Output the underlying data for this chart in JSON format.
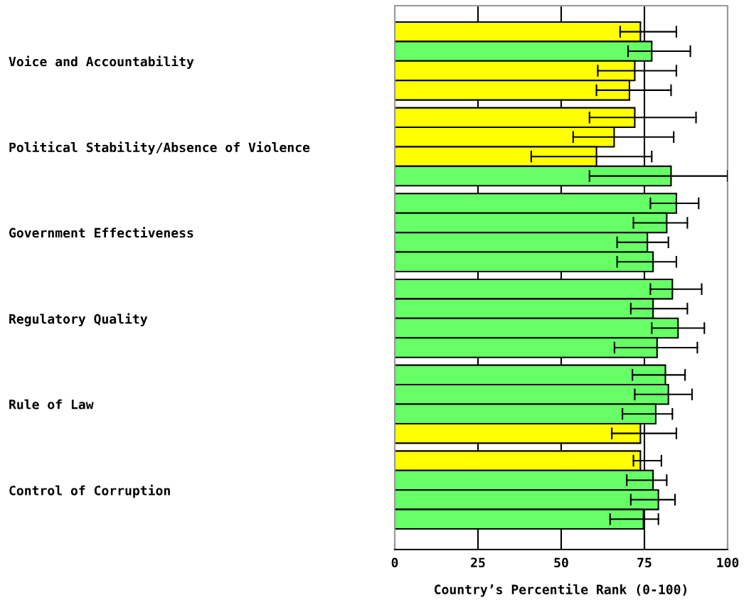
{
  "chart_data": {
    "type": "bar",
    "orientation": "horizontal",
    "xlabel": "Country’s Percentile Rank (0-100)",
    "categories": [
      "Voice and Accountability",
      "Political Stability/Absence of Violence",
      "Government Effectiveness",
      "Regulatory Quality",
      "Rule of Law",
      "Control of Corruption"
    ],
    "series": [
      {
        "values": [
          73.8,
          72.1,
          84.6,
          83.4,
          81.3,
          73.8
        ],
        "colors": [
          "#ffff00",
          "#ffff00",
          "#66ff66",
          "#66ff66",
          "#66ff66",
          "#ffff00"
        ],
        "errors": [
          [
            67.7,
            84.6
          ],
          [
            58.5,
            90.5
          ],
          [
            76.8,
            91.3
          ],
          [
            76.8,
            92.2
          ],
          [
            71.4,
            87.2
          ],
          [
            71.7,
            80.1
          ]
        ]
      },
      {
        "values": [
          77.2,
          65.9,
          81.7,
          77.6,
          82.2,
          77.6
        ],
        "colors": [
          "#66ff66",
          "#ffff00",
          "#66ff66",
          "#66ff66",
          "#66ff66",
          "#66ff66"
        ],
        "errors": [
          [
            70.1,
            88.8
          ],
          [
            53.6,
            83.8
          ],
          [
            71.7,
            87.9
          ],
          [
            70.9,
            87.9
          ],
          [
            72.1,
            89.3
          ],
          [
            69.7,
            81.7
          ]
        ]
      },
      {
        "values": [
          72.1,
          60.6,
          75.9,
          85.1,
          78.4,
          79.2
        ],
        "colors": [
          "#ffff00",
          "#ffff00",
          "#66ff66",
          "#66ff66",
          "#66ff66",
          "#66ff66"
        ],
        "errors": [
          [
            61.0,
            84.6
          ],
          [
            41.0,
            77.2
          ],
          [
            66.8,
            82.2
          ],
          [
            77.2,
            93.0
          ],
          [
            68.4,
            83.4
          ],
          [
            70.9,
            84.2
          ]
        ]
      },
      {
        "values": [
          70.5,
          83.0,
          77.6,
          78.8,
          73.8,
          74.7
        ],
        "colors": [
          "#ffff00",
          "#66ff66",
          "#66ff66",
          "#66ff66",
          "#ffff00",
          "#66ff66"
        ],
        "errors": [
          [
            60.6,
            83.0
          ],
          [
            58.5,
            100
          ],
          [
            66.8,
            84.6
          ],
          [
            66.0,
            90.9
          ],
          [
            65.2,
            84.6
          ],
          [
            64.7,
            79.2
          ]
        ]
      }
    ],
    "xlim": [
      0,
      100
    ],
    "xticks": [
      0,
      25,
      50,
      75,
      100
    ],
    "grid": "x",
    "legend": false
  }
}
